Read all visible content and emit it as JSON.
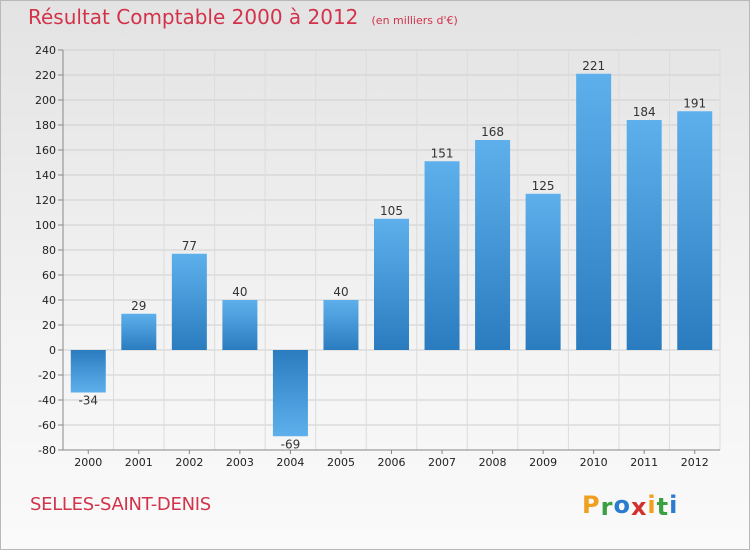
{
  "chart_data": {
    "type": "bar",
    "title": "Résultat Comptable 2000 à 2012",
    "subtitle": "(en milliers d'€)",
    "categories": [
      "2000",
      "2001",
      "2002",
      "2003",
      "2004",
      "2005",
      "2006",
      "2007",
      "2008",
      "2009",
      "2010",
      "2011",
      "2012"
    ],
    "values": [
      -34,
      29,
      77,
      40,
      -69,
      40,
      105,
      151,
      168,
      125,
      221,
      184,
      191
    ],
    "data_labels": [
      "-34",
      "29",
      "77",
      "40",
      "-69",
      "40",
      "105",
      "151",
      "168",
      "125",
      "221",
      "184",
      "191"
    ],
    "ylim": [
      -80,
      240
    ],
    "yticks": [
      -80,
      -60,
      -40,
      -20,
      0,
      20,
      40,
      60,
      80,
      100,
      120,
      140,
      160,
      180,
      200,
      220,
      240
    ],
    "ytick_labels": [
      "-80",
      "-60",
      "-40",
      "-20",
      "0",
      "20",
      "40",
      "60",
      "80",
      "100",
      "120",
      "140",
      "160",
      "180",
      "200",
      "220",
      "240"
    ],
    "grid": true,
    "bar_color_light": "#5eb0ec",
    "bar_color_dark": "#2a7cbf"
  },
  "footer": {
    "commune": "SELLES-SAINT-DENIS",
    "brand_letters": [
      "P",
      "r",
      "o",
      "x",
      "i",
      "t",
      "i"
    ],
    "brand_colors": [
      "#f0a020",
      "#3aa040",
      "#2a7cd0",
      "#d33030",
      "#f0a020",
      "#3aa040",
      "#2a7cd0"
    ]
  }
}
